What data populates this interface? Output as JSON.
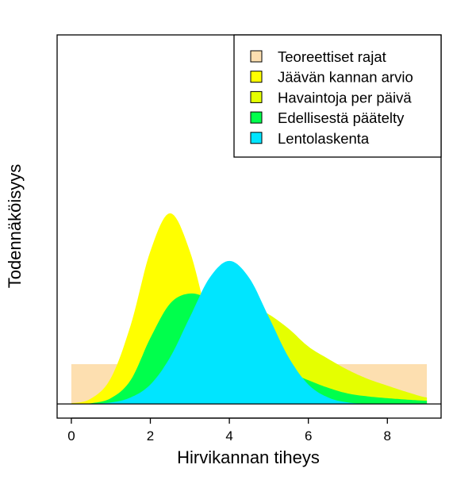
{
  "chart_data": {
    "type": "area",
    "title": "",
    "xlabel": "Hirvikannan tiheys",
    "ylabel": "Todennäköisyys",
    "xlim": [
      -0.36,
      9.36
    ],
    "ylim": [
      0,
      0.99
    ],
    "x_ticks": [
      0,
      2,
      4,
      6,
      8
    ],
    "x_tick_labels": [
      "0",
      "2",
      "4",
      "6",
      "8"
    ],
    "y_ticks_shown": false,
    "grid": false,
    "legend_position": "top-right",
    "x": [
      0,
      0.5,
      1,
      1.5,
      2,
      2.5,
      3,
      3.5,
      4,
      4.5,
      5,
      5.5,
      6,
      6.5,
      7,
      7.5,
      8,
      8.5,
      9
    ],
    "series": [
      {
        "name": "Teoreettiset rajat",
        "color": "#FDDFB0",
        "values": [
          0.111,
          0.111,
          0.111,
          0.111,
          0.111,
          0.111,
          0.111,
          0.111,
          0.111,
          0.111,
          0.111,
          0.111,
          0.111,
          0.111,
          0.111,
          0.111,
          0.111,
          0.111,
          0.111
        ]
      },
      {
        "name": "Havaintoja per päivä",
        "color": "#E5FF00",
        "values": [
          0,
          0.004,
          0.03,
          0.1,
          0.19,
          0.26,
          0.3,
          0.31,
          0.3,
          0.28,
          0.25,
          0.21,
          0.16,
          0.126,
          0.095,
          0.07,
          0.051,
          0.033,
          0.018
        ]
      },
      {
        "name": "Jäävän kannan arvio",
        "color": "#FFFF00",
        "values": [
          0.002,
          0.015,
          0.072,
          0.219,
          0.426,
          0.532,
          0.426,
          0.219,
          0.072,
          0.015,
          0.002,
          0,
          0,
          0,
          0,
          0,
          0,
          0,
          0
        ]
      },
      {
        "name": "Edellisestä päätelty",
        "color": "#00FF4C",
        "values": [
          0,
          0.002,
          0.016,
          0.066,
          0.184,
          0.28,
          0.308,
          0.29,
          0.24,
          0.17,
          0.12,
          0.09,
          0.066,
          0.045,
          0.029,
          0.021,
          0.016,
          0.012,
          0.009
        ]
      },
      {
        "name": "Lentolaskenta",
        "color": "#00E5FF",
        "values": [
          0.0001,
          0.001,
          0.004,
          0.018,
          0.054,
          0.13,
          0.242,
          0.352,
          0.399,
          0.352,
          0.242,
          0.13,
          0.054,
          0.018,
          0.004,
          0.001,
          0.0001,
          0,
          0
        ]
      }
    ],
    "legend_order": [
      "Teoreettiset rajat",
      "Jäävän kannan arvio",
      "Havaintoja per päivä",
      "Edellisestä päätelty",
      "Lentolaskenta"
    ]
  }
}
